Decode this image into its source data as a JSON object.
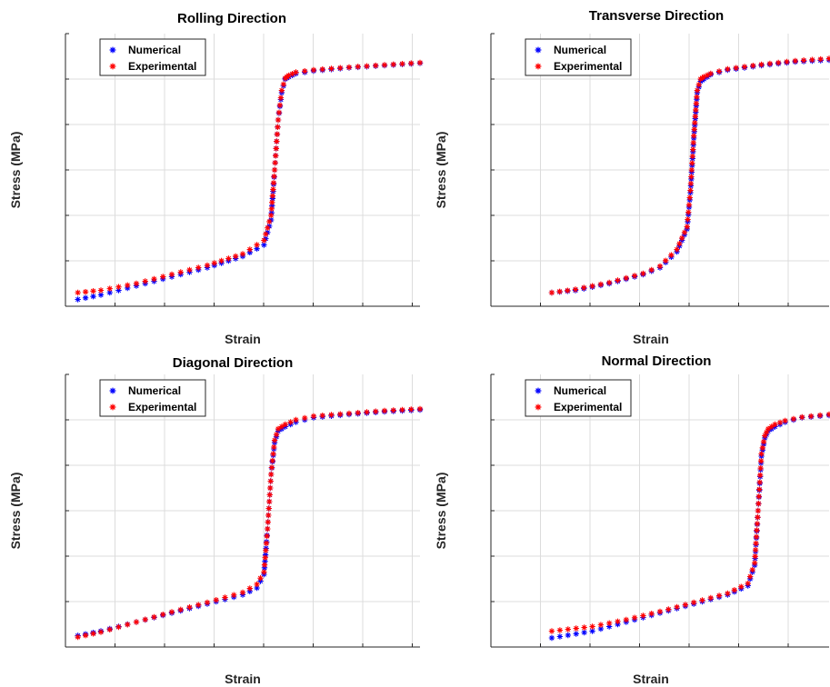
{
  "chart_data": [
    {
      "type": "scatter",
      "title": "Rolling Direction",
      "xlabel": "Strain",
      "ylabel": "Stress (MPa)",
      "xlim": [
        0,
        10
      ],
      "ylim": [
        0,
        6
      ],
      "grid": true,
      "legend": "top-left",
      "series": [
        {
          "name": "Numerical",
          "color": "#0000ff",
          "marker": "star",
          "x": [
            0.35,
            1.0,
            2.0,
            3.0,
            4.0,
            5.0,
            5.6,
            5.8,
            5.9,
            6.0,
            6.1,
            6.2,
            6.3,
            6.5,
            7.0,
            8.0,
            9.0,
            10.0
          ],
          "y": [
            0.15,
            0.25,
            0.45,
            0.65,
            0.85,
            1.1,
            1.35,
            1.9,
            3.0,
            4.1,
            4.7,
            5.0,
            5.05,
            5.12,
            5.18,
            5.25,
            5.3,
            5.35
          ]
        },
        {
          "name": "Experimental",
          "color": "#ff0000",
          "marker": "star",
          "x": [
            0.35,
            1.0,
            2.0,
            3.0,
            4.0,
            5.0,
            5.6,
            5.8,
            5.9,
            6.0,
            6.1,
            6.2,
            6.3,
            6.5,
            7.0,
            8.0,
            9.0,
            10.0
          ],
          "y": [
            0.3,
            0.35,
            0.5,
            0.7,
            0.9,
            1.15,
            1.45,
            2.0,
            3.0,
            4.1,
            4.75,
            5.02,
            5.08,
            5.15,
            5.2,
            5.26,
            5.31,
            5.36
          ]
        }
      ]
    },
    {
      "type": "scatter",
      "title": "Transverse Direction",
      "xlabel": "Strain",
      "ylabel": "Stress (MPa)",
      "xlim": [
        0,
        10
      ],
      "ylim": [
        0,
        6
      ],
      "grid": true,
      "legend": "top-left",
      "series": [
        {
          "name": "Numerical",
          "color": "#0000ff",
          "marker": "star",
          "x": [
            1.8,
            2.5,
            3.5,
            4.5,
            5.0,
            5.5,
            5.8,
            5.9,
            6.0,
            6.1,
            6.2,
            6.3,
            6.5,
            7.0,
            8.0,
            9.0,
            10.0
          ],
          "y": [
            0.3,
            0.35,
            0.5,
            0.7,
            0.85,
            1.2,
            1.7,
            2.5,
            3.7,
            4.7,
            4.95,
            5.0,
            5.1,
            5.2,
            5.3,
            5.38,
            5.42
          ]
        },
        {
          "name": "Experimental",
          "color": "#ff0000",
          "marker": "star",
          "x": [
            1.8,
            2.5,
            3.5,
            4.5,
            5.0,
            5.5,
            5.8,
            5.9,
            6.0,
            6.1,
            6.2,
            6.3,
            6.5,
            7.0,
            8.0,
            9.0,
            10.0
          ],
          "y": [
            0.3,
            0.37,
            0.52,
            0.72,
            0.88,
            1.25,
            1.75,
            2.55,
            3.75,
            4.75,
            5.0,
            5.05,
            5.12,
            5.22,
            5.32,
            5.4,
            5.45
          ]
        }
      ]
    },
    {
      "type": "scatter",
      "title": "Diagonal Direction",
      "xlabel": "Strain",
      "ylabel": "Stress (MPa)",
      "xlim": [
        0,
        10
      ],
      "ylim": [
        0,
        6
      ],
      "grid": true,
      "legend": "top-left",
      "series": [
        {
          "name": "Numerical",
          "color": "#0000ff",
          "marker": "star",
          "x": [
            0.35,
            1.0,
            2.0,
            3.0,
            4.0,
            5.0,
            5.4,
            5.6,
            5.7,
            5.8,
            5.9,
            6.0,
            6.2,
            6.5,
            7.0,
            8.0,
            9.0,
            10.0
          ],
          "y": [
            0.25,
            0.35,
            0.55,
            0.75,
            0.95,
            1.15,
            1.3,
            1.6,
            2.6,
            3.8,
            4.5,
            4.75,
            4.85,
            4.95,
            5.05,
            5.12,
            5.18,
            5.22
          ]
        },
        {
          "name": "Experimental",
          "color": "#ff0000",
          "marker": "star",
          "x": [
            0.35,
            1.0,
            2.0,
            3.0,
            4.0,
            5.0,
            5.4,
            5.6,
            5.7,
            5.8,
            5.9,
            6.0,
            6.2,
            6.5,
            7.0,
            8.0,
            9.0,
            10.0
          ],
          "y": [
            0.22,
            0.33,
            0.55,
            0.77,
            0.98,
            1.2,
            1.38,
            1.65,
            2.6,
            3.8,
            4.55,
            4.8,
            4.9,
            5.0,
            5.08,
            5.14,
            5.2,
            5.24
          ]
        }
      ]
    },
    {
      "type": "scatter",
      "title": "Normal Direction",
      "xlabel": "Strain",
      "ylabel": "Stress (MPa)",
      "xlim": [
        0,
        10
      ],
      "ylim": [
        0,
        6
      ],
      "grid": true,
      "legend": "top-left",
      "series": [
        {
          "name": "Numerical",
          "color": "#0000ff",
          "marker": "star",
          "x": [
            1.8,
            3.0,
            4.0,
            5.0,
            6.0,
            7.0,
            7.6,
            7.8,
            7.9,
            8.0,
            8.1,
            8.2,
            8.4,
            8.7,
            9.2,
            10.0
          ],
          "y": [
            0.2,
            0.35,
            0.55,
            0.75,
            0.95,
            1.15,
            1.35,
            1.8,
            3.0,
            4.2,
            4.6,
            4.75,
            4.85,
            4.95,
            5.05,
            5.1
          ]
        },
        {
          "name": "Experimental",
          "color": "#ff0000",
          "marker": "star",
          "x": [
            1.8,
            3.0,
            4.0,
            5.0,
            6.0,
            7.0,
            7.6,
            7.8,
            7.9,
            8.0,
            8.1,
            8.2,
            8.4,
            8.7,
            9.2,
            10.0
          ],
          "y": [
            0.35,
            0.45,
            0.6,
            0.78,
            0.98,
            1.18,
            1.4,
            1.85,
            3.0,
            4.25,
            4.65,
            4.8,
            4.9,
            4.98,
            5.06,
            5.12
          ]
        }
      ]
    }
  ]
}
